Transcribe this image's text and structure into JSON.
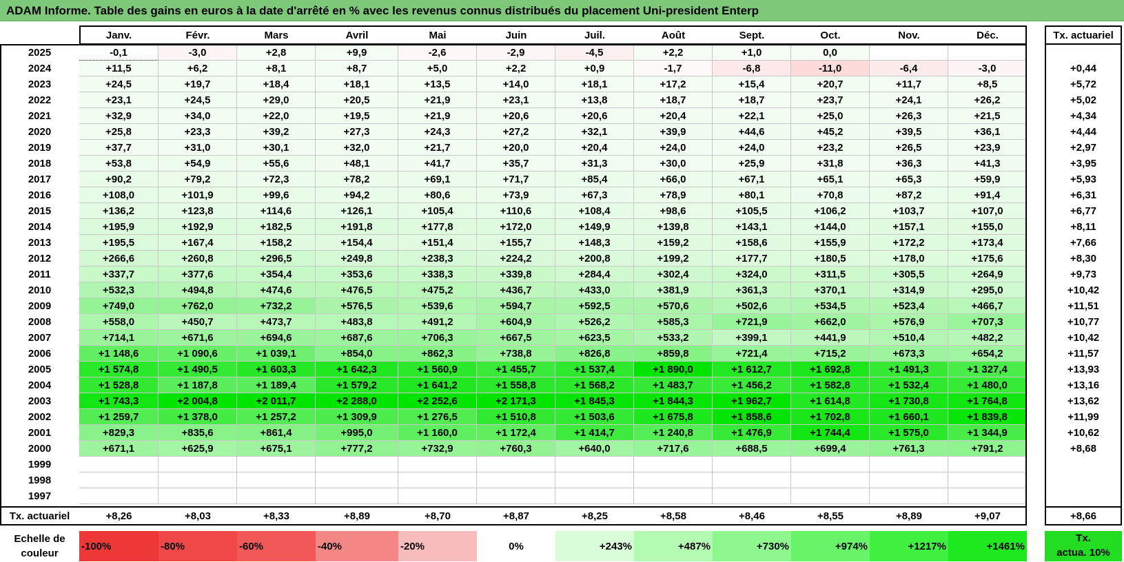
{
  "title": "ADAM Informe. Table des gains en euros à la date d'arrêté en % avec les revenus connus distribués du placement Uni-president Enterp",
  "months": [
    "Janv.",
    "Févr.",
    "Mars",
    "Avril",
    "Mai",
    "Juin",
    "Juil.",
    "Août",
    "Sept.",
    "Oct.",
    "Nov.",
    "Déc."
  ],
  "rate_header": "Tx. actuariel",
  "rows": [
    {
      "year": "2025",
      "values": [
        "-0,1",
        "-3,0",
        "+2,8",
        "+9,9",
        "-2,6",
        "-2,9",
        "-4,5",
        "+2,2",
        "+1,0",
        "0,0",
        "",
        ""
      ],
      "rate": ""
    },
    {
      "year": "2024",
      "values": [
        "+11,5",
        "+6,2",
        "+8,1",
        "+8,7",
        "+5,0",
        "+2,2",
        "+0,9",
        "-1,7",
        "-6,8",
        "-11,0",
        "-6,4",
        "-3,0"
      ],
      "rate": "+0,44"
    },
    {
      "year": "2023",
      "values": [
        "+24,5",
        "+19,7",
        "+18,4",
        "+18,1",
        "+13,5",
        "+14,0",
        "+18,1",
        "+17,2",
        "+15,4",
        "+20,7",
        "+11,7",
        "+8,5"
      ],
      "rate": "+5,72"
    },
    {
      "year": "2022",
      "values": [
        "+23,1",
        "+24,5",
        "+29,0",
        "+20,5",
        "+21,9",
        "+23,1",
        "+13,8",
        "+18,7",
        "+18,7",
        "+23,7",
        "+24,1",
        "+26,2"
      ],
      "rate": "+5,02"
    },
    {
      "year": "2021",
      "values": [
        "+32,9",
        "+34,0",
        "+22,0",
        "+19,5",
        "+21,9",
        "+20,6",
        "+20,6",
        "+20,4",
        "+22,1",
        "+25,0",
        "+26,3",
        "+21,5"
      ],
      "rate": "+4,34"
    },
    {
      "year": "2020",
      "values": [
        "+25,8",
        "+23,3",
        "+39,2",
        "+27,3",
        "+24,3",
        "+27,2",
        "+32,1",
        "+39,9",
        "+44,6",
        "+45,2",
        "+39,5",
        "+36,1"
      ],
      "rate": "+4,44"
    },
    {
      "year": "2019",
      "values": [
        "+37,7",
        "+31,0",
        "+30,1",
        "+32,0",
        "+21,7",
        "+20,0",
        "+20,4",
        "+24,0",
        "+24,0",
        "+23,2",
        "+26,5",
        "+23,9"
      ],
      "rate": "+2,97"
    },
    {
      "year": "2018",
      "values": [
        "+53,8",
        "+54,9",
        "+55,6",
        "+48,1",
        "+41,7",
        "+35,7",
        "+31,3",
        "+30,0",
        "+25,9",
        "+31,8",
        "+36,3",
        "+41,3"
      ],
      "rate": "+3,95"
    },
    {
      "year": "2017",
      "values": [
        "+90,2",
        "+79,2",
        "+72,3",
        "+78,2",
        "+69,1",
        "+71,7",
        "+85,4",
        "+66,0",
        "+67,1",
        "+65,1",
        "+65,3",
        "+59,9"
      ],
      "rate": "+5,93"
    },
    {
      "year": "2016",
      "values": [
        "+108,0",
        "+101,9",
        "+99,6",
        "+94,2",
        "+80,6",
        "+73,9",
        "+67,3",
        "+78,9",
        "+80,1",
        "+70,8",
        "+87,2",
        "+91,4"
      ],
      "rate": "+6,31"
    },
    {
      "year": "2015",
      "values": [
        "+136,2",
        "+123,8",
        "+114,6",
        "+126,1",
        "+105,4",
        "+110,6",
        "+108,4",
        "+98,6",
        "+105,5",
        "+106,2",
        "+103,7",
        "+107,0"
      ],
      "rate": "+6,77"
    },
    {
      "year": "2014",
      "values": [
        "+195,9",
        "+192,9",
        "+182,5",
        "+191,8",
        "+177,8",
        "+172,0",
        "+149,9",
        "+139,8",
        "+143,1",
        "+144,0",
        "+157,1",
        "+155,0"
      ],
      "rate": "+8,11"
    },
    {
      "year": "2013",
      "values": [
        "+195,5",
        "+167,4",
        "+158,2",
        "+154,4",
        "+151,4",
        "+155,7",
        "+148,3",
        "+159,2",
        "+158,6",
        "+155,9",
        "+172,2",
        "+173,4"
      ],
      "rate": "+7,66"
    },
    {
      "year": "2012",
      "values": [
        "+266,6",
        "+260,8",
        "+296,5",
        "+249,8",
        "+238,3",
        "+224,2",
        "+200,8",
        "+199,2",
        "+177,7",
        "+180,5",
        "+178,0",
        "+175,6"
      ],
      "rate": "+8,30"
    },
    {
      "year": "2011",
      "values": [
        "+337,7",
        "+377,6",
        "+354,4",
        "+353,6",
        "+338,3",
        "+339,8",
        "+284,4",
        "+302,4",
        "+324,0",
        "+311,5",
        "+305,5",
        "+264,9"
      ],
      "rate": "+9,73"
    },
    {
      "year": "2010",
      "values": [
        "+532,3",
        "+494,8",
        "+474,6",
        "+476,5",
        "+475,2",
        "+436,7",
        "+433,0",
        "+381,9",
        "+361,3",
        "+370,1",
        "+314,9",
        "+295,0"
      ],
      "rate": "+10,42"
    },
    {
      "year": "2009",
      "values": [
        "+749,0",
        "+762,0",
        "+732,2",
        "+576,5",
        "+539,6",
        "+594,7",
        "+592,5",
        "+570,6",
        "+502,6",
        "+534,5",
        "+523,4",
        "+466,7"
      ],
      "rate": "+11,51"
    },
    {
      "year": "2008",
      "values": [
        "+558,0",
        "+450,7",
        "+473,7",
        "+483,8",
        "+491,2",
        "+604,9",
        "+526,2",
        "+585,3",
        "+721,9",
        "+662,0",
        "+576,9",
        "+707,3"
      ],
      "rate": "+10,77"
    },
    {
      "year": "2007",
      "values": [
        "+714,1",
        "+671,6",
        "+694,6",
        "+687,6",
        "+706,3",
        "+667,5",
        "+623,5",
        "+533,2",
        "+399,1",
        "+441,9",
        "+510,4",
        "+482,2"
      ],
      "rate": "+10,42"
    },
    {
      "year": "2006",
      "values": [
        "+1 148,6",
        "+1 090,6",
        "+1 039,1",
        "+854,0",
        "+862,3",
        "+738,8",
        "+826,8",
        "+859,8",
        "+721,4",
        "+715,2",
        "+673,3",
        "+654,2"
      ],
      "rate": "+11,57"
    },
    {
      "year": "2005",
      "values": [
        "+1 574,8",
        "+1 490,5",
        "+1 603,3",
        "+1 642,3",
        "+1 560,9",
        "+1 455,7",
        "+1 537,4",
        "+1 890,0",
        "+1 612,7",
        "+1 692,8",
        "+1 491,3",
        "+1 327,4"
      ],
      "rate": "+13,93"
    },
    {
      "year": "2004",
      "values": [
        "+1 528,8",
        "+1 187,8",
        "+1 189,4",
        "+1 579,2",
        "+1 641,2",
        "+1 558,8",
        "+1 568,2",
        "+1 483,7",
        "+1 456,2",
        "+1 582,8",
        "+1 532,4",
        "+1 480,0"
      ],
      "rate": "+13,16"
    },
    {
      "year": "2003",
      "values": [
        "+1 743,3",
        "+2 004,8",
        "+2 011,7",
        "+2 288,0",
        "+2 252,6",
        "+2 171,3",
        "+1 845,3",
        "+1 844,3",
        "+1 962,7",
        "+1 614,8",
        "+1 730,8",
        "+1 764,8"
      ],
      "rate": "+13,62"
    },
    {
      "year": "2002",
      "values": [
        "+1 259,7",
        "+1 378,0",
        "+1 257,2",
        "+1 309,9",
        "+1 276,5",
        "+1 510,8",
        "+1 503,6",
        "+1 675,8",
        "+1 858,6",
        "+1 702,8",
        "+1 660,1",
        "+1 839,8"
      ],
      "rate": "+11,99"
    },
    {
      "year": "2001",
      "values": [
        "+829,3",
        "+835,6",
        "+861,4",
        "+995,0",
        "+1 160,0",
        "+1 172,4",
        "+1 414,7",
        "+1 240,8",
        "+1 476,9",
        "+1 744,4",
        "+1 575,0",
        "+1 344,9"
      ],
      "rate": "+10,62"
    },
    {
      "year": "2000",
      "values": [
        "+671,1",
        "+625,9",
        "+675,1",
        "+777,2",
        "+732,9",
        "+760,3",
        "+640,0",
        "+717,6",
        "+688,5",
        "+699,4",
        "+761,3",
        "+791,2"
      ],
      "rate": "+8,68"
    },
    {
      "year": "1999",
      "values": [
        "",
        "",
        "",
        "",
        "",
        "",
        "",
        "",
        "",
        "",
        "",
        ""
      ],
      "rate": ""
    },
    {
      "year": "1998",
      "values": [
        "",
        "",
        "",
        "",
        "",
        "",
        "",
        "",
        "",
        "",
        "",
        ""
      ],
      "rate": ""
    },
    {
      "year": "1997",
      "values": [
        "",
        "",
        "",
        "",
        "",
        "",
        "",
        "",
        "",
        "",
        "",
        ""
      ],
      "rate": ""
    }
  ],
  "footer": {
    "label": "Tx. actuariel",
    "values": [
      "+8,26",
      "+8,03",
      "+8,33",
      "+8,89",
      "+8,70",
      "+8,87",
      "+8,25",
      "+8,58",
      "+8,46",
      "+8,55",
      "+8,89",
      "+9,07"
    ],
    "total": "+8,66"
  },
  "scale": {
    "label_line1": "Echelle de",
    "label_line2": "couleur",
    "items": [
      {
        "text": "-100%",
        "color": "#ee3838"
      },
      {
        "text": "-80%",
        "color": "#f04848"
      },
      {
        "text": "-60%",
        "color": "#f25858"
      },
      {
        "text": "-40%",
        "color": "#f58686"
      },
      {
        "text": "-20%",
        "color": "#f9bcbc"
      },
      {
        "text": "0%",
        "color": "#ffffff"
      },
      {
        "text": "+243%",
        "color": "#d9fdd9"
      },
      {
        "text": "+487%",
        "color": "#b3fab3"
      },
      {
        "text": "+730%",
        "color": "#8ef78e"
      },
      {
        "text": "+974%",
        "color": "#68f468"
      },
      {
        "text": "+1217%",
        "color": "#40f040"
      },
      {
        "text": "+1461%",
        "color": "#1ee81e"
      }
    ],
    "ref_line1": "Tx.",
    "ref_line2": "actua. 10%",
    "ref_color": "#22dd22"
  },
  "colors": {
    "title_bg": "#7ec87a",
    "green_max": "#00e600",
    "red_max": "#f03030"
  }
}
